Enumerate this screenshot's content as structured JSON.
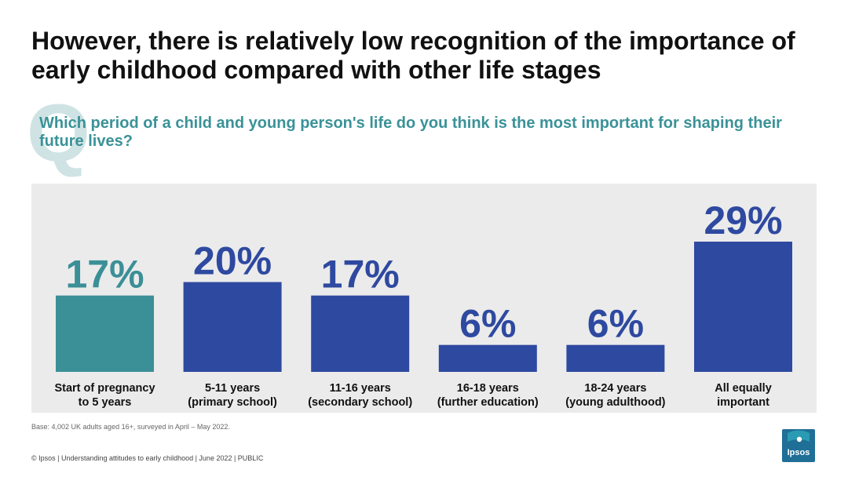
{
  "title": "However, there is relatively low recognition of the importance of early childhood compared with other life stages",
  "question_letter": "Q",
  "question": "Which period of a child and young person's life do you think is the most important for shaping their future lives?",
  "base_note": "Base: 4,002 UK adults aged 16+, surveyed in April – May 2022.",
  "footer": "© Ipsos | Understanding attitudes to early childhood | June 2022 | PUBLIC",
  "logo_text": "Ipsos",
  "colors": {
    "highlight": "#3b8f97",
    "bar": "#2e49a0",
    "panel": "#ebebeb",
    "question": "#3a9298"
  },
  "chart_data": {
    "type": "bar",
    "categories": [
      [
        "Start of pregnancy",
        "to 5 years"
      ],
      [
        "5-11 years",
        "(primary school)"
      ],
      [
        "11-16 years",
        "(secondary school)"
      ],
      [
        "16-18 years",
        "(further education)"
      ],
      [
        "18-24 years",
        "(young adulthood)"
      ],
      [
        "All equally",
        "important"
      ]
    ],
    "values": [
      17,
      20,
      17,
      6,
      6,
      29
    ],
    "data_labels": [
      "17%",
      "20%",
      "17%",
      "6%",
      "6%",
      "29%"
    ],
    "unit": "%",
    "highlight_index": 0,
    "title": "",
    "xlabel": "",
    "ylabel": "",
    "ylim": [
      0,
      29
    ],
    "grid": false,
    "legend": "none"
  }
}
